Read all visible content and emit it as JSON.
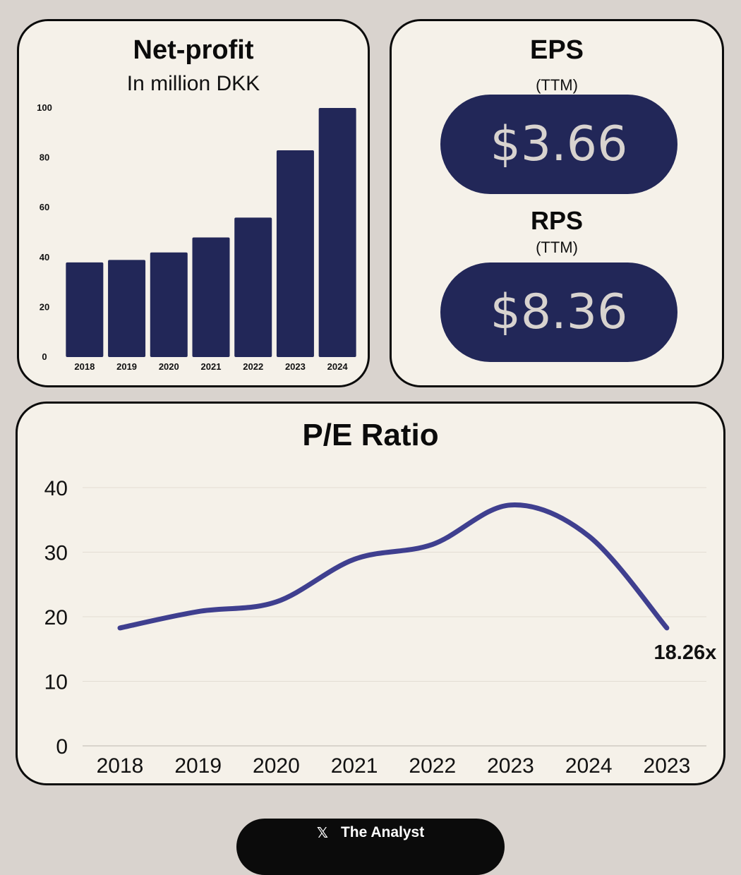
{
  "net_profit_card": {
    "title": "Net-profit",
    "subtitle": "In million DKK"
  },
  "eps_card": {
    "eps_title": "EPS",
    "eps_period": "(TTM)",
    "eps_value": "$3.66",
    "rps_title": "RPS",
    "rps_period": "(TTM)",
    "rps_value": "$8.36"
  },
  "pe_card": {
    "title": "P/E Ratio"
  },
  "footer": {
    "icon": "x-logo-icon",
    "label": "The Analyst"
  },
  "colors": {
    "bar": "#222758",
    "line": "#3f3f8f",
    "card": "#f5f1e9",
    "background": "#d9d3ce"
  },
  "chart_data": [
    {
      "type": "bar",
      "title": "Net-profit",
      "subtitle": "In million DKK",
      "categories": [
        "2018",
        "2019",
        "2020",
        "2021",
        "2022",
        "2023",
        "2024"
      ],
      "values": [
        38,
        39,
        42,
        48,
        56,
        83,
        100
      ],
      "yticks": [
        0,
        20,
        40,
        60,
        80,
        100
      ],
      "ylim": [
        0,
        100
      ],
      "xlabel": "",
      "ylabel": "",
      "grid": false
    },
    {
      "type": "line",
      "title": "P/E Ratio",
      "categories": [
        "2018",
        "2019",
        "2020",
        "2021",
        "2022",
        "2023",
        "2024",
        "2023"
      ],
      "values": [
        18.26,
        20.8,
        22.3,
        28.9,
        31.2,
        37.3,
        32.5,
        18.26
      ],
      "yticks": [
        0,
        10,
        20,
        30,
        40
      ],
      "ylim": [
        0,
        40
      ],
      "annotation": {
        "index": 7,
        "text": "18.26x"
      },
      "xlabel": "",
      "ylabel": "",
      "grid": true
    }
  ]
}
